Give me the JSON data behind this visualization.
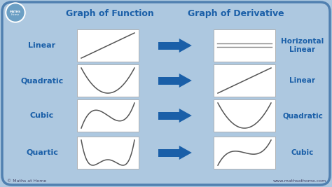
{
  "bg_color": "#adc8e0",
  "box_color": "#ffffff",
  "arrow_color": "#1a5fa8",
  "text_color": "#1a5fa8",
  "title_left": "Graph of Function",
  "title_right": "Graph of Derivative",
  "row_labels": [
    "Linear",
    "Quadratic",
    "Cubic",
    "Quartic"
  ],
  "deriv_labels": [
    "Horizontal\nLinear",
    "Linear",
    "Quadratic",
    "Cubic"
  ],
  "logo_color": "#6b9fc4",
  "copyright_text": "© Maths at Home",
  "website_text": "www.mathsathome.com",
  "border_color": "#5080b0",
  "figw": 4.74,
  "figh": 2.67,
  "dpi": 100
}
